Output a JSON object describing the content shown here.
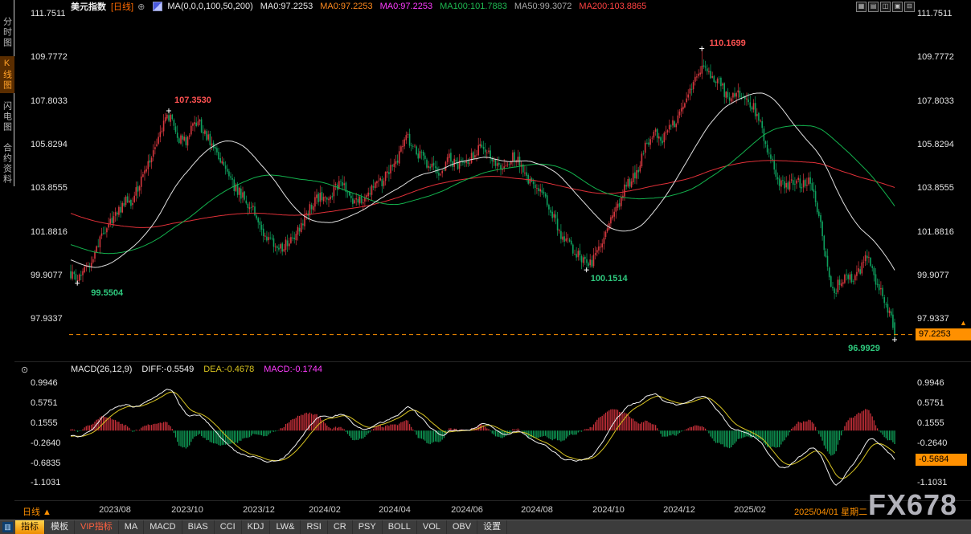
{
  "header": {
    "title": "美元指数",
    "period": "[日线]",
    "add_icon": "⊕",
    "ma_settings": "MA(0,0,0,100,50,200)",
    "ma_values": [
      {
        "text": "MA0:97.2253",
        "color": "#e8e8e8"
      },
      {
        "text": "MA0:97.2253",
        "color": "#ff8a1e"
      },
      {
        "text": "MA0:97.2253",
        "color": "#ff3cff"
      },
      {
        "text": "MA100:101.7883",
        "color": "#1fba52"
      },
      {
        "text": "MA50:99.3072",
        "color": "#a8a8a8"
      },
      {
        "text": "MA200:103.8865",
        "color": "#ff4242"
      }
    ],
    "window_icons": [
      "▦",
      "▤",
      "◫",
      "▣",
      "⊟"
    ]
  },
  "sidebar": {
    "items": [
      {
        "label": "分时图",
        "active": false
      },
      {
        "label": "K线图",
        "active": true
      },
      {
        "label": "闪电图",
        "active": false
      },
      {
        "label": "合约资料",
        "active": false
      }
    ]
  },
  "price_axis": {
    "labels": [
      "111.7511",
      "109.7772",
      "107.8033",
      "105.8294",
      "103.8555",
      "101.8816",
      "99.9077",
      "97.9337"
    ]
  },
  "price_marker": {
    "value": "97.2253"
  },
  "macd_panel": {
    "icon": "⊙",
    "title": "MACD(26,12,9)",
    "diff_label": "DIFF:-0.5549",
    "dea_label": "DEA:-0.4678",
    "macd_label": "MACD:-0.1744",
    "axis_labels": [
      "0.9946",
      "0.5751",
      "0.1555",
      "-0.2640",
      "-0.6835",
      "-1.1031"
    ],
    "marker": "-0.5684"
  },
  "xaxis": {
    "period_selector": "日线 ▲",
    "dates": [
      "2023/08",
      "2023/10",
      "2023/12",
      "2024/02",
      "2024/04",
      "2024/06",
      "2024/08",
      "2024/10",
      "2024/12",
      "2025/02"
    ],
    "highlight_date": "2025/04/01 星期二"
  },
  "bottom_bar": {
    "tabs": [
      {
        "label": "指标",
        "style": "active"
      },
      {
        "label": "模板",
        "style": "plain"
      },
      {
        "label": "VIP指标",
        "style": "vip"
      },
      {
        "label": "MA",
        "style": "plain"
      },
      {
        "label": "MACD",
        "style": "plain"
      },
      {
        "label": "BIAS",
        "style": "plain"
      },
      {
        "label": "CCI",
        "style": "plain"
      },
      {
        "label": "KDJ",
        "style": "plain"
      },
      {
        "label": "LW&",
        "style": "plain"
      },
      {
        "label": "RSI",
        "style": "plain"
      },
      {
        "label": "CR",
        "style": "plain"
      },
      {
        "label": "PSY",
        "style": "plain"
      },
      {
        "label": "BOLL",
        "style": "plain"
      },
      {
        "label": "VOL",
        "style": "plain"
      },
      {
        "label": "OBV",
        "style": "plain"
      },
      {
        "label": "设置",
        "style": "plain"
      }
    ]
  },
  "watermark": "FX678",
  "colors": {
    "up": "#d8383f",
    "down": "#0ea25f",
    "ma50": "#e0e0e0",
    "ma100": "#13b24d",
    "ma200": "#e03038",
    "diff": "#f0f0f0",
    "dea": "#d8c422",
    "hist_pos": "#c9303a",
    "hist_neg": "#0f9d57",
    "accent": "#ff9000"
  },
  "chart_data": {
    "type": "candlestick",
    "instrument": "美元指数",
    "period": "日线",
    "x_range": [
      "2023/07",
      "2025/06"
    ],
    "price_axis_values": [
      111.7511,
      109.7772,
      107.8033,
      105.8294,
      103.8555,
      101.8816,
      99.9077,
      97.9337
    ],
    "visible_bars": 480,
    "last_close": 97.2253,
    "moving_averages": {
      "ma50": 99.3072,
      "ma100": 101.7883,
      "ma200": 103.8865
    },
    "macd": {
      "params": [
        26,
        12,
        9
      ],
      "diff": -0.5549,
      "dea": -0.4678,
      "macd": -0.1744,
      "axis_values": [
        0.9946,
        0.5751,
        0.1555,
        -0.264,
        -0.6835,
        -1.1031
      ]
    },
    "marked_points": [
      {
        "label": "99.5504",
        "t": 0.008,
        "price": 99.5504,
        "type": "low"
      },
      {
        "label": "107.3530",
        "t": 0.119,
        "price": 107.353,
        "type": "high"
      },
      {
        "label": "100.1514",
        "t": 0.626,
        "price": 100.1514,
        "type": "low"
      },
      {
        "label": "110.1699",
        "t": 0.766,
        "price": 110.1699,
        "type": "high"
      },
      {
        "label": "96.9929",
        "t": 1.0,
        "price": 96.9929,
        "type": "low"
      }
    ],
    "trend_keypoints": [
      [
        0.0,
        99.95
      ],
      [
        0.008,
        99.62
      ],
      [
        0.016,
        100.05
      ],
      [
        0.03,
        101.2
      ],
      [
        0.042,
        101.95
      ],
      [
        0.055,
        102.65
      ],
      [
        0.065,
        103.35
      ],
      [
        0.075,
        103.05
      ],
      [
        0.088,
        104.6
      ],
      [
        0.1,
        105.6
      ],
      [
        0.112,
        106.7
      ],
      [
        0.12,
        107.1
      ],
      [
        0.128,
        106.3
      ],
      [
        0.14,
        105.95
      ],
      [
        0.152,
        106.8
      ],
      [
        0.163,
        106.45
      ],
      [
        0.178,
        105.4
      ],
      [
        0.193,
        104.15
      ],
      [
        0.208,
        103.6
      ],
      [
        0.222,
        102.7
      ],
      [
        0.238,
        101.7
      ],
      [
        0.256,
        101.0
      ],
      [
        0.27,
        101.6
      ],
      [
        0.285,
        102.6
      ],
      [
        0.3,
        103.4
      ],
      [
        0.315,
        103.55
      ],
      [
        0.328,
        104.15
      ],
      [
        0.342,
        103.15
      ],
      [
        0.356,
        103.45
      ],
      [
        0.37,
        103.9
      ],
      [
        0.384,
        104.55
      ],
      [
        0.396,
        105.1
      ],
      [
        0.408,
        106.2
      ],
      [
        0.42,
        105.55
      ],
      [
        0.432,
        104.9
      ],
      [
        0.445,
        104.45
      ],
      [
        0.458,
        105.25
      ],
      [
        0.47,
        104.7
      ],
      [
        0.483,
        105.2
      ],
      [
        0.496,
        105.65
      ],
      [
        0.51,
        105.2
      ],
      [
        0.524,
        104.95
      ],
      [
        0.538,
        105.25
      ],
      [
        0.552,
        104.4
      ],
      [
        0.566,
        103.8
      ],
      [
        0.58,
        103.0
      ],
      [
        0.594,
        101.95
      ],
      [
        0.608,
        101.1
      ],
      [
        0.62,
        100.55
      ],
      [
        0.63,
        100.5
      ],
      [
        0.644,
        101.15
      ],
      [
        0.658,
        102.55
      ],
      [
        0.672,
        103.8
      ],
      [
        0.685,
        104.3
      ],
      [
        0.698,
        105.85
      ],
      [
        0.708,
        106.45
      ],
      [
        0.718,
        105.95
      ],
      [
        0.73,
        106.75
      ],
      [
        0.742,
        107.45
      ],
      [
        0.752,
        108.15
      ],
      [
        0.762,
        109.1
      ],
      [
        0.77,
        109.55
      ],
      [
        0.778,
        109.0
      ],
      [
        0.788,
        108.45
      ],
      [
        0.798,
        107.9
      ],
      [
        0.808,
        108.25
      ],
      [
        0.818,
        107.8
      ],
      [
        0.828,
        107.45
      ],
      [
        0.838,
        106.75
      ],
      [
        0.848,
        105.4
      ],
      [
        0.858,
        104.15
      ],
      [
        0.868,
        103.9
      ],
      [
        0.878,
        104.25
      ],
      [
        0.888,
        104.05
      ],
      [
        0.898,
        104.2
      ],
      [
        0.908,
        102.7
      ],
      [
        0.918,
        100.3
      ],
      [
        0.926,
        98.95
      ],
      [
        0.934,
        99.6
      ],
      [
        0.942,
        100.0
      ],
      [
        0.95,
        99.7
      ],
      [
        0.958,
        100.1
      ],
      [
        0.966,
        100.9
      ],
      [
        0.974,
        99.85
      ],
      [
        0.982,
        99.3
      ],
      [
        0.988,
        98.9
      ],
      [
        0.994,
        98.05
      ],
      [
        1.0,
        97.25
      ]
    ]
  }
}
